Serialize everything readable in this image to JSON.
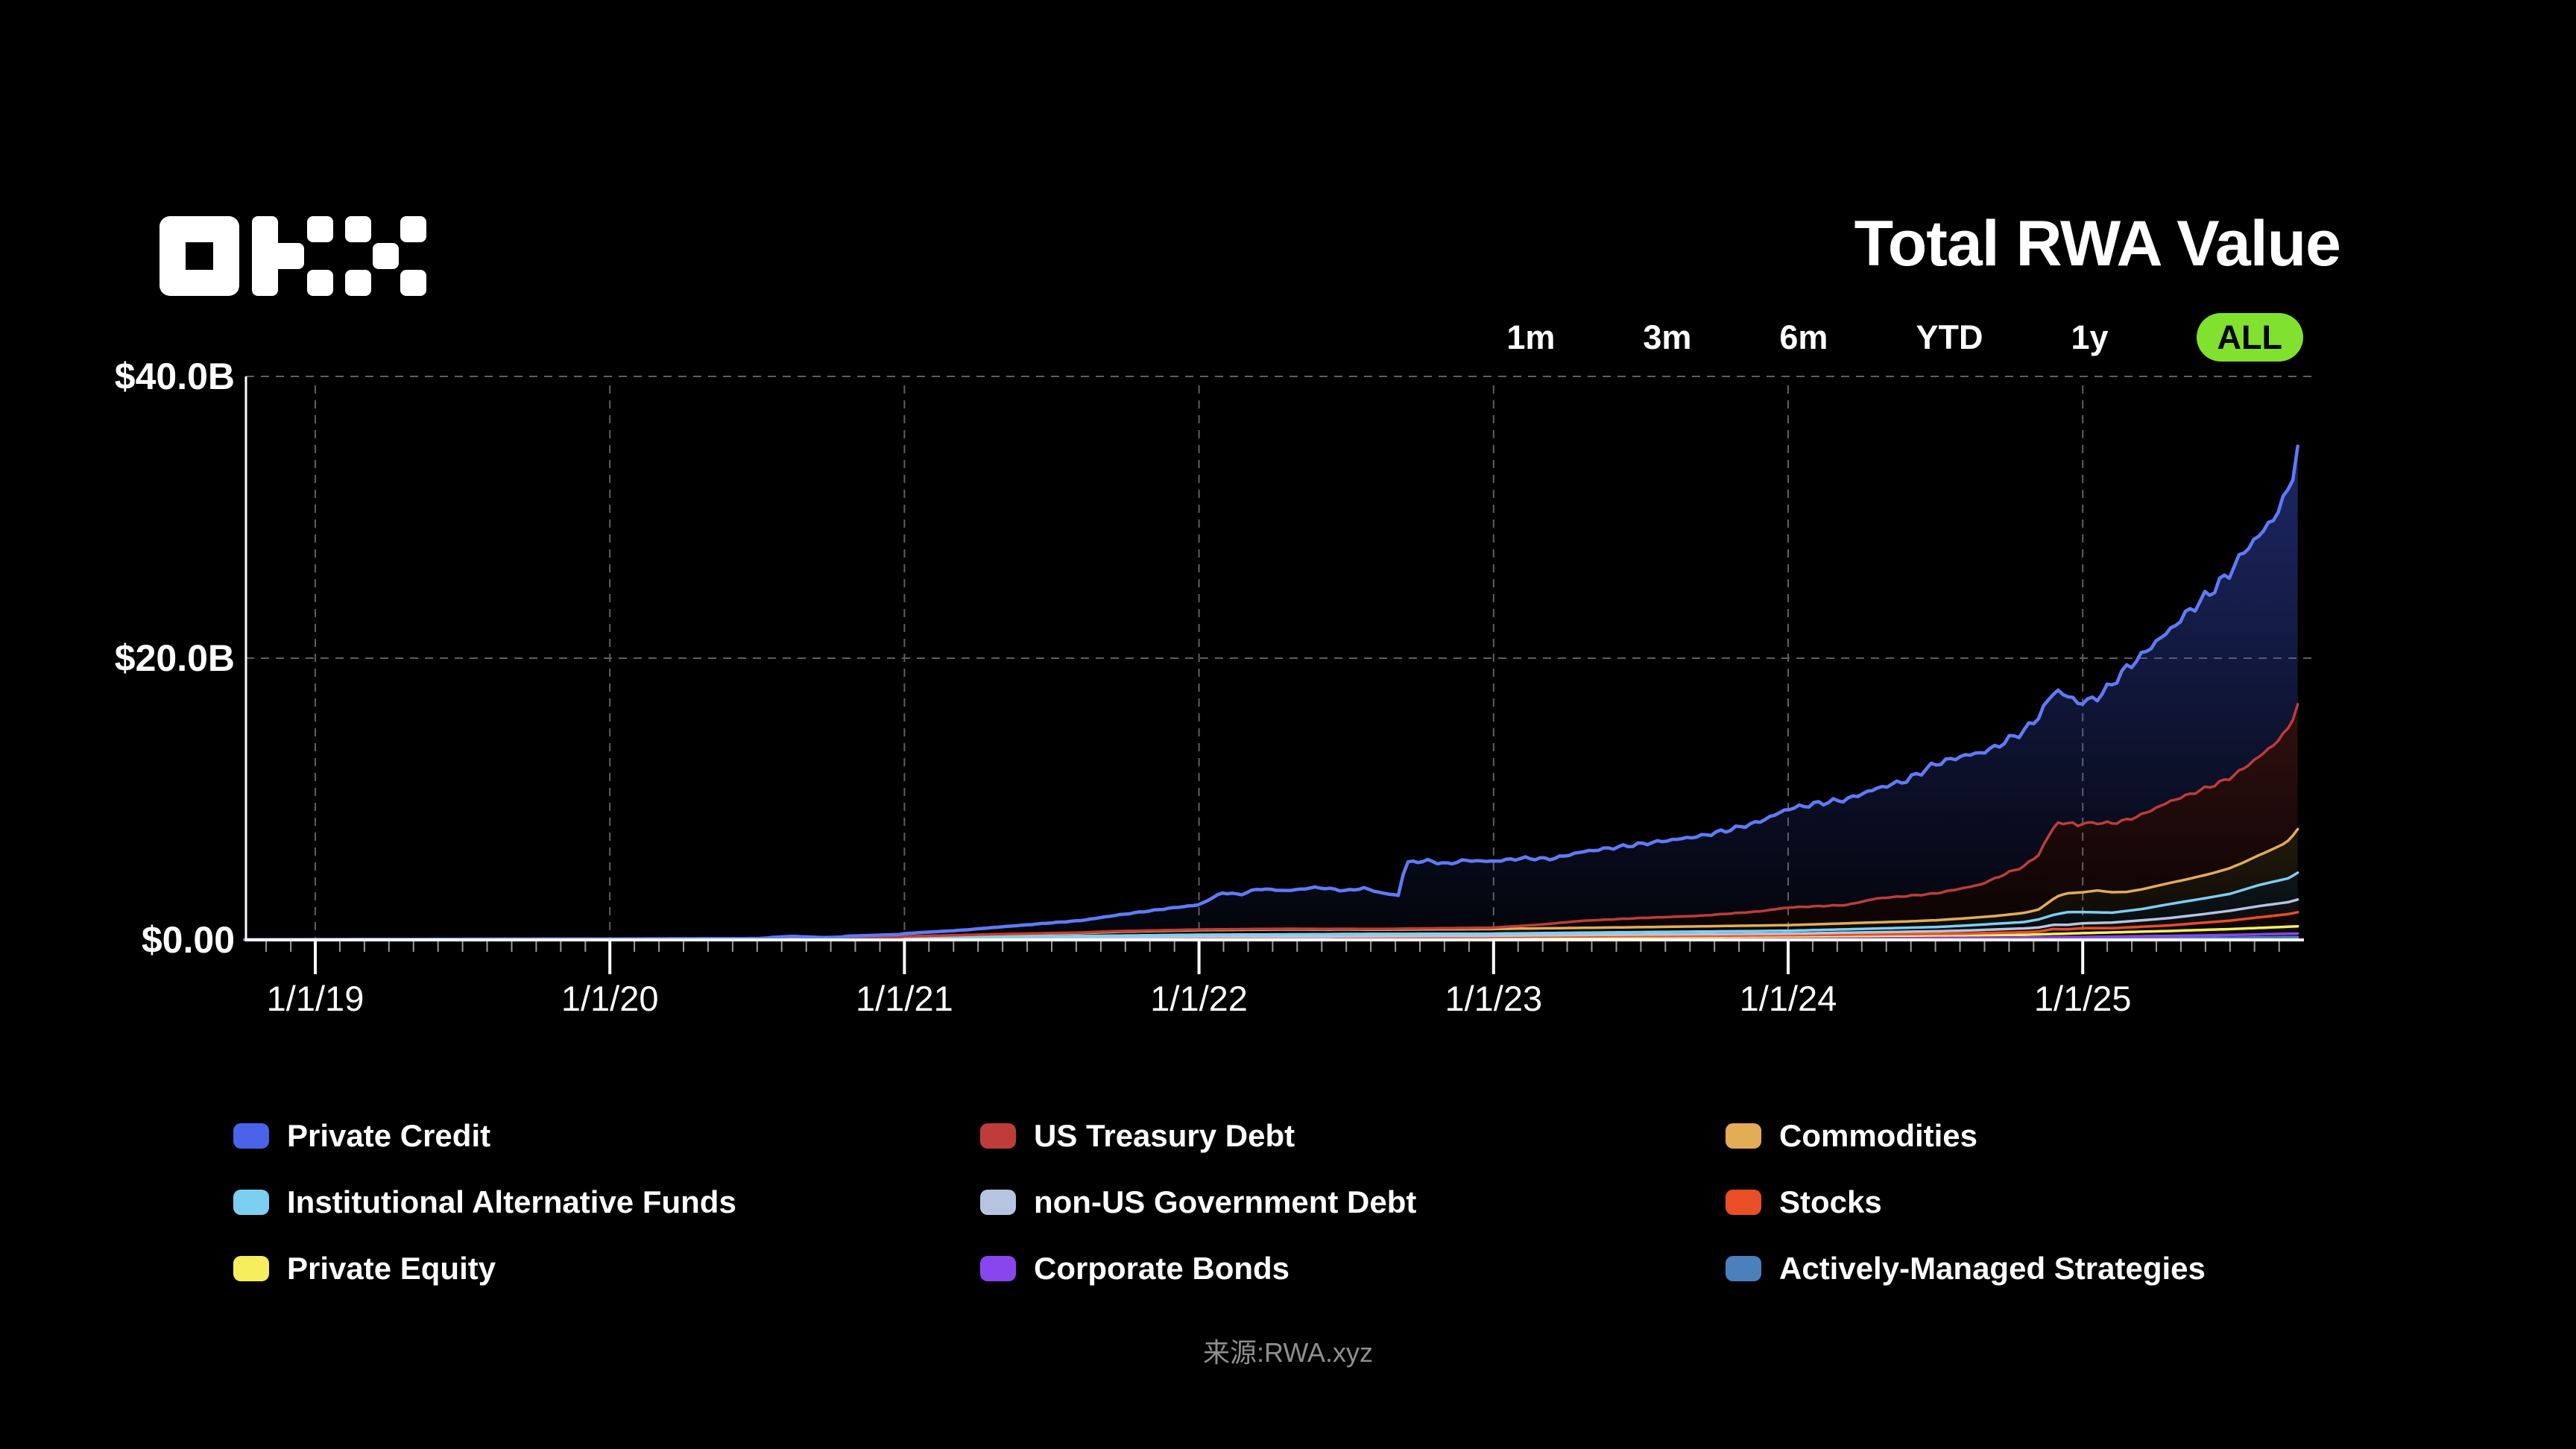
{
  "logo": {
    "name": "OKX"
  },
  "header": {
    "title": "Total RWA Value"
  },
  "time_ranges": {
    "options": [
      "1m",
      "3m",
      "6m",
      "YTD",
      "1y",
      "ALL"
    ],
    "active": "ALL"
  },
  "colors": {
    "background": "#000000",
    "accent_green": "#80E22E",
    "text": "#FFFFFF",
    "muted_text": "#8F8F8F",
    "grid": "#5F5F5F",
    "axis": "#FFFFFF",
    "minor_tick": "#9A9A9A"
  },
  "footer": {
    "source": "来源:RWA.xyz"
  },
  "legend": {
    "columns": [
      [
        "private_credit",
        "institutional_alternative_funds",
        "private_equity"
      ],
      [
        "us_treasury_debt",
        "non_us_government_debt",
        "corporate_bonds"
      ],
      [
        "commodities",
        "stocks",
        "actively_managed_strategies"
      ]
    ]
  },
  "chart_data": {
    "type": "area",
    "stacked": true,
    "title": "Total RWA Value",
    "unit": "USD billions",
    "ylim": [
      0,
      40
    ],
    "x_range": [
      2018.76,
      2025.73
    ],
    "grid": true,
    "legend_position": "bottom",
    "y_ticks": [
      {
        "label": "$40.0B",
        "value": 40
      },
      {
        "label": "$20.0B",
        "value": 20
      },
      {
        "label": "$0.00",
        "value": 0
      }
    ],
    "x_ticks": [
      {
        "label": "1/1/19",
        "t": 2019
      },
      {
        "label": "1/1/20",
        "t": 2020
      },
      {
        "label": "1/1/21",
        "t": 2021
      },
      {
        "label": "1/1/22",
        "t": 2022
      },
      {
        "label": "1/1/23",
        "t": 2023
      },
      {
        "label": "1/1/24",
        "t": 2024
      },
      {
        "label": "1/1/25",
        "t": 2025
      }
    ],
    "series": [
      {
        "key": "actively_managed_strategies",
        "label": "Actively-Managed Strategies",
        "color": "#4C80BC",
        "points": [
          [
            2023.0,
            0.01
          ],
          [
            2024.0,
            0.02
          ],
          [
            2024.8,
            0.05
          ],
          [
            2025.0,
            0.08
          ],
          [
            2025.3,
            0.12
          ],
          [
            2025.5,
            0.15
          ],
          [
            2025.73,
            0.2
          ]
        ]
      },
      {
        "key": "corporate_bonds",
        "label": "Corporate Bonds",
        "color": "#8A46EE",
        "points": [
          [
            2022.45,
            0.01
          ],
          [
            2023.0,
            0.05
          ],
          [
            2024.0,
            0.08
          ],
          [
            2025.0,
            0.12
          ],
          [
            2025.5,
            0.2
          ],
          [
            2025.73,
            0.25
          ]
        ]
      },
      {
        "key": "private_equity",
        "label": "Private Equity",
        "color": "#F6EE5D",
        "points": [
          [
            2020.8,
            0.02
          ],
          [
            2021.0,
            0.04
          ],
          [
            2021.5,
            0.08
          ],
          [
            2022.0,
            0.12
          ],
          [
            2023.0,
            0.1
          ],
          [
            2024.0,
            0.15
          ],
          [
            2024.8,
            0.2
          ],
          [
            2025.0,
            0.28
          ],
          [
            2025.3,
            0.35
          ],
          [
            2025.5,
            0.42
          ],
          [
            2025.7,
            0.5
          ],
          [
            2025.73,
            0.52
          ]
        ]
      },
      {
        "key": "stocks",
        "label": "Stocks",
        "color": "#E94E26",
        "points": [
          [
            2021.0,
            0.03
          ],
          [
            2022.0,
            0.05
          ],
          [
            2023.0,
            0.06
          ],
          [
            2024.0,
            0.08
          ],
          [
            2024.6,
            0.12
          ],
          [
            2024.85,
            0.2
          ],
          [
            2024.9,
            0.35
          ],
          [
            2024.95,
            0.3
          ],
          [
            2025.0,
            0.35
          ],
          [
            2025.1,
            0.3
          ],
          [
            2025.3,
            0.4
          ],
          [
            2025.5,
            0.6
          ],
          [
            2025.6,
            0.75
          ],
          [
            2025.7,
            0.9
          ],
          [
            2025.73,
            1.0
          ]
        ]
      },
      {
        "key": "non_us_government_debt",
        "label": "non-US Government Debt",
        "color": "#B6C4E2",
        "points": [
          [
            2021.0,
            0.02
          ],
          [
            2022.0,
            0.05
          ],
          [
            2023.0,
            0.08
          ],
          [
            2024.0,
            0.12
          ],
          [
            2024.5,
            0.18
          ],
          [
            2024.9,
            0.3
          ],
          [
            2025.0,
            0.35
          ],
          [
            2025.2,
            0.45
          ],
          [
            2025.4,
            0.6
          ],
          [
            2025.5,
            0.7
          ],
          [
            2025.6,
            0.8
          ],
          [
            2025.7,
            0.85
          ],
          [
            2025.73,
            0.9
          ]
        ]
      },
      {
        "key": "institutional_alternative_funds",
        "label": "Institutional Alternative Funds",
        "color": "#7DCFF2",
        "points": [
          [
            2020.8,
            0.02
          ],
          [
            2021.0,
            0.05
          ],
          [
            2021.5,
            0.1
          ],
          [
            2022.0,
            0.15
          ],
          [
            2022.5,
            0.18
          ],
          [
            2023.0,
            0.15
          ],
          [
            2023.5,
            0.18
          ],
          [
            2024.0,
            0.2
          ],
          [
            2024.5,
            0.3
          ],
          [
            2024.8,
            0.45
          ],
          [
            2024.9,
            0.7
          ],
          [
            2024.95,
            0.9
          ],
          [
            2025.0,
            0.8
          ],
          [
            2025.1,
            0.7
          ],
          [
            2025.2,
            0.8
          ],
          [
            2025.3,
            1.0
          ],
          [
            2025.4,
            1.1
          ],
          [
            2025.5,
            1.2
          ],
          [
            2025.6,
            1.5
          ],
          [
            2025.7,
            1.7
          ],
          [
            2025.73,
            1.9
          ]
        ]
      },
      {
        "key": "commodities",
        "label": "Commodities",
        "color": "#E3AD56",
        "points": [
          [
            2020.55,
            0.03
          ],
          [
            2021.0,
            0.08
          ],
          [
            2021.3,
            0.15
          ],
          [
            2021.6,
            0.2
          ],
          [
            2021.72,
            0.27
          ],
          [
            2022.0,
            0.32
          ],
          [
            2022.3,
            0.35
          ],
          [
            2022.6,
            0.3
          ],
          [
            2023.0,
            0.33
          ],
          [
            2023.5,
            0.35
          ],
          [
            2024.0,
            0.4
          ],
          [
            2024.4,
            0.45
          ],
          [
            2024.7,
            0.55
          ],
          [
            2024.85,
            0.7
          ],
          [
            2024.92,
            1.3
          ],
          [
            2025.0,
            1.4
          ],
          [
            2025.05,
            1.55
          ],
          [
            2025.15,
            1.35
          ],
          [
            2025.25,
            1.45
          ],
          [
            2025.35,
            1.55
          ],
          [
            2025.45,
            1.7
          ],
          [
            2025.55,
            1.95
          ],
          [
            2025.62,
            2.2
          ],
          [
            2025.68,
            2.5
          ],
          [
            2025.71,
            2.8
          ],
          [
            2025.73,
            3.1
          ]
        ]
      },
      {
        "key": "us_treasury_debt",
        "label": "US Treasury Debt",
        "color": "#BE3D3B",
        "points": [
          [
            2020.8,
            0.02
          ],
          [
            2021.5,
            0.05
          ],
          [
            2022.0,
            0.05
          ],
          [
            2022.6,
            0.05
          ],
          [
            2023.0,
            0.1
          ],
          [
            2023.15,
            0.25
          ],
          [
            2023.3,
            0.5
          ],
          [
            2023.5,
            0.65
          ],
          [
            2023.7,
            0.75
          ],
          [
            2023.9,
            1.0
          ],
          [
            2024.0,
            1.25
          ],
          [
            2024.2,
            1.3
          ],
          [
            2024.3,
            1.7
          ],
          [
            2024.5,
            1.9
          ],
          [
            2024.65,
            2.3
          ],
          [
            2024.75,
            3.0
          ],
          [
            2024.8,
            3.3
          ],
          [
            2024.85,
            3.9
          ],
          [
            2024.88,
            4.6
          ],
          [
            2024.91,
            5.3
          ],
          [
            2024.94,
            4.9
          ],
          [
            2024.96,
            5.1
          ],
          [
            2024.98,
            4.7
          ],
          [
            2025.0,
            4.9
          ],
          [
            2025.05,
            4.8
          ],
          [
            2025.1,
            4.9
          ],
          [
            2025.2,
            5.3
          ],
          [
            2025.3,
            5.8
          ],
          [
            2025.4,
            6.1
          ],
          [
            2025.5,
            6.4
          ],
          [
            2025.6,
            7.0
          ],
          [
            2025.65,
            7.4
          ],
          [
            2025.7,
            8.0
          ],
          [
            2025.73,
            8.8
          ]
        ]
      },
      {
        "key": "private_credit",
        "label": "Private Credit",
        "color": "#4A63E8",
        "line": "#5F7BF7",
        "fill": "#3C52D0",
        "points": [
          [
            2018.76,
            0.02
          ],
          [
            2019.5,
            0.05
          ],
          [
            2020.0,
            0.07
          ],
          [
            2020.5,
            0.1
          ],
          [
            2020.62,
            0.22
          ],
          [
            2020.72,
            0.12
          ],
          [
            2021.0,
            0.2
          ],
          [
            2021.2,
            0.35
          ],
          [
            2021.4,
            0.6
          ],
          [
            2021.6,
            0.85
          ],
          [
            2021.75,
            1.2
          ],
          [
            2021.9,
            1.55
          ],
          [
            2022.0,
            1.75
          ],
          [
            2022.08,
            2.6
          ],
          [
            2022.14,
            2.45
          ],
          [
            2022.2,
            2.85
          ],
          [
            2022.3,
            2.7
          ],
          [
            2022.4,
            2.95
          ],
          [
            2022.5,
            2.7
          ],
          [
            2022.56,
            2.9
          ],
          [
            2022.62,
            2.55
          ],
          [
            2022.68,
            2.35
          ],
          [
            2022.7,
            4.7
          ],
          [
            2022.78,
            4.8
          ],
          [
            2022.84,
            4.55
          ],
          [
            2022.9,
            4.8
          ],
          [
            2023.0,
            4.7
          ],
          [
            2023.1,
            4.8
          ],
          [
            2023.2,
            4.6
          ],
          [
            2023.3,
            4.9
          ],
          [
            2023.5,
            5.25
          ],
          [
            2023.6,
            5.45
          ],
          [
            2023.7,
            5.65
          ],
          [
            2023.8,
            5.95
          ],
          [
            2023.9,
            6.35
          ],
          [
            2024.0,
            7.0
          ],
          [
            2024.1,
            7.3
          ],
          [
            2024.2,
            7.5
          ],
          [
            2024.3,
            7.8
          ],
          [
            2024.4,
            8.2
          ],
          [
            2024.5,
            9.2
          ],
          [
            2024.6,
            9.4
          ],
          [
            2024.7,
            9.3
          ],
          [
            2024.8,
            9.6
          ],
          [
            2024.85,
            9.8
          ],
          [
            2024.9,
            9.6
          ],
          [
            2024.93,
            9.2
          ],
          [
            2024.97,
            8.8
          ],
          [
            2025.0,
            8.6
          ],
          [
            2025.05,
            8.9
          ],
          [
            2025.1,
            9.9
          ],
          [
            2025.15,
            10.8
          ],
          [
            2025.2,
            11.3
          ],
          [
            2025.25,
            11.8
          ],
          [
            2025.3,
            12.2
          ],
          [
            2025.35,
            12.9
          ],
          [
            2025.4,
            13.4
          ],
          [
            2025.45,
            14.0
          ],
          [
            2025.5,
            14.6
          ],
          [
            2025.55,
            15.4
          ],
          [
            2025.6,
            15.7
          ],
          [
            2025.65,
            16.1
          ],
          [
            2025.68,
            16.6
          ],
          [
            2025.71,
            17.2
          ],
          [
            2025.73,
            18.2
          ]
        ]
      }
    ]
  }
}
